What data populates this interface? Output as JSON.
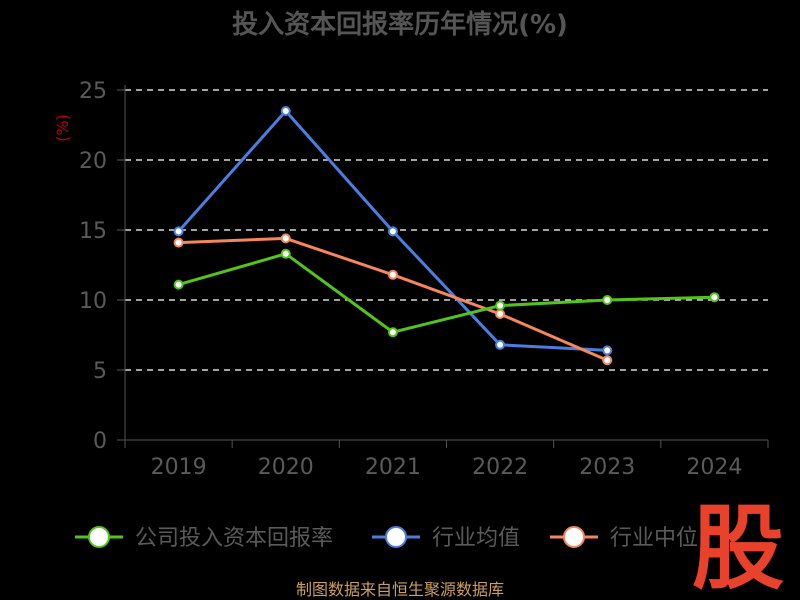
{
  "chart_data": {
    "type": "line",
    "title": "投入资本回报率历年情况(%)",
    "ylabel": "(%)",
    "xlabel": "",
    "categories": [
      "2019",
      "2020",
      "2021",
      "2022",
      "2023",
      "2024"
    ],
    "ylim": [
      0,
      25
    ],
    "yticks": [
      "0",
      "5",
      "10",
      "15",
      "20",
      "25"
    ],
    "grid": true,
    "legend_position": "bottom",
    "series": [
      {
        "name": "公司投入资本回报率",
        "color": "#52c41a",
        "values": [
          11.1,
          13.3,
          7.7,
          9.6,
          10.0,
          10.2
        ]
      },
      {
        "name": "行业均值",
        "color": "#4a7fe0",
        "values": [
          14.9,
          23.5,
          14.9,
          6.8,
          6.4,
          null
        ]
      },
      {
        "name": "行业中位",
        "color": "#f5875a",
        "values": [
          14.1,
          14.4,
          11.8,
          9.0,
          5.7,
          null
        ]
      }
    ]
  },
  "source": "制图数据来自恒生聚源数据库",
  "logo_text": "股"
}
